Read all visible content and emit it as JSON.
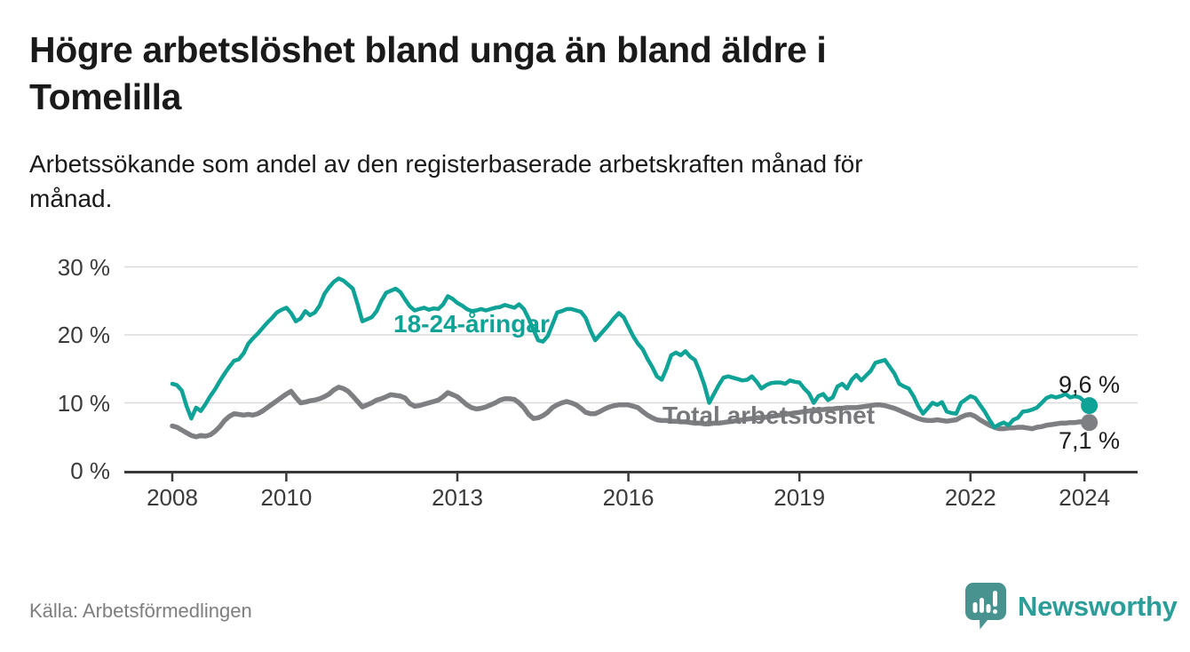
{
  "header": {
    "title_lines": [
      "Högre arbetslöshet bland unga än bland äldre i",
      "Tomelilla"
    ],
    "subtitle_lines": [
      "Arbetssökande som andel av den registerbaserade arbetskraften månad för",
      "månad."
    ]
  },
  "chart_data": {
    "type": "line",
    "unit": "percent of registered labour force",
    "x_start_year": 2008,
    "x_granularity": "monthly",
    "x_end": "2024-02",
    "xticks": [
      2008,
      2010,
      2013,
      2016,
      2019,
      2022,
      2024
    ],
    "yticks": [
      0,
      10,
      20,
      30
    ],
    "ytick_suffix": " %",
    "ylim": [
      0,
      30
    ],
    "grid": "horizontal",
    "legend_position": "inline-labels",
    "series": [
      {
        "name": "18-24-åringar",
        "color": "#0fa296",
        "end_label": "9,6 %",
        "end_value": 9.6,
        "values": [
          12.8,
          12.6,
          11.8,
          9.5,
          7.7,
          9.3,
          8.8,
          9.8,
          11.0,
          12.0,
          13.2,
          14.3,
          15.3,
          16.2,
          16.4,
          17.3,
          18.7,
          19.5,
          20.2,
          21.0,
          21.8,
          22.5,
          23.3,
          23.7,
          24.0,
          23.2,
          22.0,
          22.4,
          23.5,
          22.9,
          23.3,
          24.3,
          26.0,
          27.0,
          27.8,
          28.3,
          28.0,
          27.4,
          26.8,
          24.5,
          22.0,
          22.3,
          22.6,
          23.5,
          25.0,
          26.2,
          26.5,
          26.8,
          26.3,
          25.2,
          24.2,
          23.6,
          23.8,
          24.0,
          23.7,
          23.9,
          23.8,
          24.5,
          25.7,
          25.3,
          24.7,
          24.3,
          23.8,
          23.5,
          23.6,
          23.8,
          23.6,
          23.8,
          24.0,
          24.1,
          24.4,
          24.2,
          24.0,
          24.5,
          23.8,
          22.4,
          20.8,
          19.2,
          19.0,
          19.8,
          21.5,
          23.3,
          23.5,
          23.8,
          23.8,
          23.6,
          23.4,
          22.5,
          20.7,
          19.2,
          20.0,
          20.8,
          21.6,
          22.5,
          23.2,
          22.6,
          21.2,
          19.8,
          18.7,
          17.9,
          16.5,
          15.3,
          13.9,
          13.4,
          15.0,
          17.0,
          17.4,
          17.0,
          17.6,
          16.8,
          16.3,
          14.6,
          12.6,
          10.0,
          11.3,
          12.6,
          13.7,
          13.9,
          13.7,
          13.5,
          13.3,
          13.4,
          13.9,
          13.1,
          12.1,
          12.6,
          12.9,
          13.0,
          13.0,
          12.8,
          13.3,
          13.1,
          13.0,
          12.1,
          11.4,
          10.0,
          11.0,
          11.3,
          10.4,
          10.8,
          12.4,
          12.8,
          12.1,
          13.4,
          14.1,
          13.3,
          14.0,
          14.7,
          15.9,
          16.1,
          16.3,
          15.3,
          14.3,
          12.8,
          12.4,
          12.1,
          11.0,
          9.5,
          8.4,
          9.2,
          10.0,
          9.7,
          10.1,
          8.7,
          8.5,
          8.4,
          10.0,
          10.5,
          11.0,
          10.7,
          9.7,
          8.7,
          7.5,
          6.4,
          6.8,
          7.1,
          6.7,
          7.5,
          7.8,
          8.7,
          8.8,
          9.0,
          9.3,
          10.0,
          10.7,
          11.0,
          10.8,
          11.0,
          11.3,
          10.8,
          11.0,
          10.8,
          10.2,
          9.6
        ]
      },
      {
        "name": "Total arbetslöshet",
        "color": "#7e7f83",
        "end_label": "7,1 %",
        "end_value": 7.1,
        "values": [
          6.6,
          6.4,
          6.0,
          5.6,
          5.2,
          5.0,
          5.2,
          5.1,
          5.3,
          5.8,
          6.5,
          7.4,
          8.0,
          8.4,
          8.3,
          8.2,
          8.3,
          8.2,
          8.4,
          8.8,
          9.3,
          9.8,
          10.3,
          10.8,
          11.3,
          11.7,
          10.8,
          10.0,
          10.1,
          10.3,
          10.4,
          10.6,
          10.9,
          11.3,
          11.9,
          12.3,
          12.1,
          11.7,
          11.0,
          10.2,
          9.4,
          9.7,
          10.0,
          10.4,
          10.6,
          10.9,
          11.2,
          11.1,
          11.0,
          10.7,
          9.9,
          9.5,
          9.6,
          9.8,
          10.0,
          10.2,
          10.4,
          10.9,
          11.5,
          11.2,
          10.9,
          10.3,
          9.7,
          9.3,
          9.1,
          9.2,
          9.4,
          9.7,
          10.0,
          10.4,
          10.6,
          10.6,
          10.5,
          10.0,
          9.3,
          8.3,
          7.7,
          7.8,
          8.1,
          8.6,
          9.3,
          9.7,
          10.0,
          10.2,
          10.0,
          9.7,
          9.2,
          8.6,
          8.4,
          8.4,
          8.7,
          9.1,
          9.4,
          9.6,
          9.7,
          9.7,
          9.7,
          9.5,
          9.3,
          8.7,
          8.2,
          7.8,
          7.5,
          7.4,
          7.4,
          7.3,
          7.3,
          7.2,
          7.2,
          7.1,
          7.0,
          7.0,
          6.9,
          6.9,
          7.0,
          7.0,
          7.1,
          7.2,
          7.3,
          7.4,
          7.5,
          7.6,
          7.7,
          7.8,
          7.8,
          7.9,
          8.0,
          8.1,
          8.2,
          8.3,
          8.4,
          8.5,
          8.6,
          8.7,
          8.8,
          8.9,
          9.0,
          9.0,
          9.1,
          9.1,
          9.2,
          9.2,
          9.3,
          9.3,
          9.3,
          9.4,
          9.5,
          9.6,
          9.7,
          9.7,
          9.6,
          9.4,
          9.2,
          8.9,
          8.6,
          8.3,
          8.0,
          7.7,
          7.5,
          7.4,
          7.4,
          7.5,
          7.4,
          7.3,
          7.4,
          7.5,
          7.9,
          8.2,
          8.3,
          8.0,
          7.5,
          7.1,
          6.7,
          6.4,
          6.2,
          6.2,
          6.3,
          6.3,
          6.4,
          6.4,
          6.3,
          6.2,
          6.4,
          6.5,
          6.7,
          6.8,
          6.9,
          7.0,
          7.0,
          7.1,
          7.1,
          7.2,
          7.2,
          7.1
        ]
      }
    ]
  },
  "footer": {
    "source": "Källa: Arbetsförmedlingen",
    "logo_text": "Newsworthy"
  },
  "colors": {
    "accent_teal": "#0fa296",
    "line_gray": "#7e7f83",
    "series_label_gray": "#77787b",
    "axis": "#3a3a3a",
    "grid": "#dadada",
    "title_text": "#1a1a1a",
    "value_label_text": "#1d1d1d",
    "source_text": "#7e7e7e",
    "logo_icon": "#48938f",
    "logo_text_color": "#2c9e99"
  }
}
